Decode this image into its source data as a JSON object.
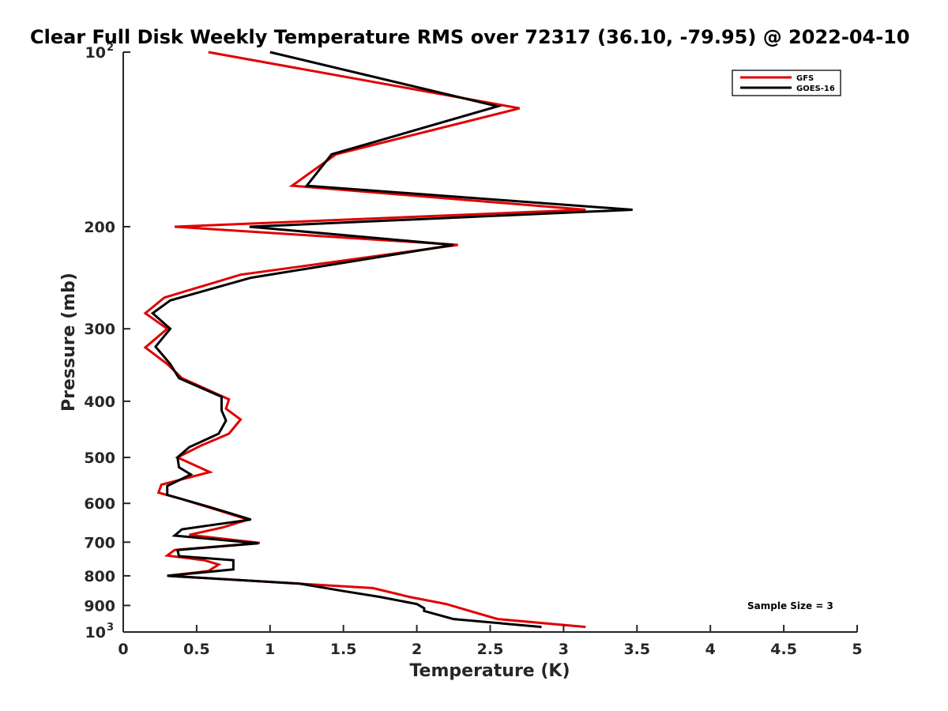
{
  "chart_data": {
    "type": "line",
    "title": "Clear Full Disk Weekly Temperature RMS over 72317 (36.10, -79.95) @ 2022-04-10",
    "xlabel": "Temperature (K)",
    "ylabel": "Pressure (mb)",
    "xlim": [
      0,
      5
    ],
    "ylim": [
      100,
      1000
    ],
    "yscale": "log",
    "y_reversed": true,
    "grid": false,
    "legend_position": "top-right",
    "annotation": "Sample Size = 3",
    "x_ticks": [
      "0",
      "0.5",
      "1",
      "1.5",
      "2",
      "2.5",
      "3",
      "3.5",
      "4",
      "4.5",
      "5"
    ],
    "y_ticks": [
      {
        "value": 100,
        "base": "10",
        "exp": "2"
      },
      {
        "value": 200,
        "label": "200"
      },
      {
        "value": 300,
        "label": "300"
      },
      {
        "value": 400,
        "label": "400"
      },
      {
        "value": 500,
        "label": "500"
      },
      {
        "value": 600,
        "label": "600"
      },
      {
        "value": 700,
        "label": "700"
      },
      {
        "value": 800,
        "label": "800"
      },
      {
        "value": 900,
        "label": "900"
      },
      {
        "value": 1000,
        "base": "10",
        "exp": "3"
      }
    ],
    "series": [
      {
        "name": "GFS",
        "color": "#e00000",
        "points": [
          [
            0.58,
            100
          ],
          [
            2.7,
            125
          ],
          [
            1.45,
            150
          ],
          [
            1.15,
            170
          ],
          [
            3.15,
            187
          ],
          [
            0.35,
            200
          ],
          [
            2.28,
            215
          ],
          [
            0.8,
            242
          ],
          [
            0.28,
            265
          ],
          [
            0.15,
            282
          ],
          [
            0.3,
            300
          ],
          [
            0.15,
            323
          ],
          [
            0.3,
            345
          ],
          [
            0.4,
            365
          ],
          [
            0.72,
            397
          ],
          [
            0.7,
            412
          ],
          [
            0.8,
            430
          ],
          [
            0.72,
            455
          ],
          [
            0.53,
            477
          ],
          [
            0.37,
            500
          ],
          [
            0.59,
            530
          ],
          [
            0.26,
            557
          ],
          [
            0.24,
            575
          ],
          [
            0.4,
            590
          ],
          [
            0.65,
            617
          ],
          [
            0.85,
            640
          ],
          [
            0.68,
            660
          ],
          [
            0.45,
            680
          ],
          [
            0.93,
            702
          ],
          [
            0.35,
            722
          ],
          [
            0.3,
            738
          ],
          [
            0.55,
            752
          ],
          [
            0.65,
            765
          ],
          [
            0.58,
            785
          ],
          [
            0.3,
            800
          ],
          [
            1.7,
            840
          ],
          [
            1.95,
            870
          ],
          [
            2.2,
            895
          ],
          [
            2.33,
            915
          ],
          [
            2.55,
            950
          ],
          [
            3.15,
            980
          ]
        ]
      },
      {
        "name": "GOES-16",
        "color": "#000000",
        "points": [
          [
            1.0,
            100
          ],
          [
            2.55,
            124
          ],
          [
            1.42,
            150
          ],
          [
            1.25,
            170
          ],
          [
            3.47,
            187
          ],
          [
            0.86,
            200
          ],
          [
            2.25,
            215
          ],
          [
            0.87,
            245
          ],
          [
            0.32,
            268
          ],
          [
            0.2,
            282
          ],
          [
            0.32,
            300
          ],
          [
            0.22,
            322
          ],
          [
            0.32,
            345
          ],
          [
            0.38,
            365
          ],
          [
            0.67,
            393
          ],
          [
            0.67,
            415
          ],
          [
            0.7,
            432
          ],
          [
            0.65,
            455
          ],
          [
            0.45,
            480
          ],
          [
            0.37,
            500
          ],
          [
            0.38,
            520
          ],
          [
            0.46,
            535
          ],
          [
            0.3,
            560
          ],
          [
            0.3,
            580
          ],
          [
            0.6,
            610
          ],
          [
            0.87,
            640
          ],
          [
            0.4,
            665
          ],
          [
            0.35,
            682
          ],
          [
            0.92,
            703
          ],
          [
            0.37,
            722
          ],
          [
            0.38,
            740
          ],
          [
            0.75,
            752
          ],
          [
            0.75,
            780
          ],
          [
            0.3,
            800
          ],
          [
            1.2,
            825
          ],
          [
            1.5,
            850
          ],
          [
            1.75,
            870
          ],
          [
            2.0,
            895
          ],
          [
            2.05,
            910
          ],
          [
            2.05,
            920
          ],
          [
            2.25,
            950
          ],
          [
            2.85,
            980
          ]
        ]
      }
    ]
  }
}
